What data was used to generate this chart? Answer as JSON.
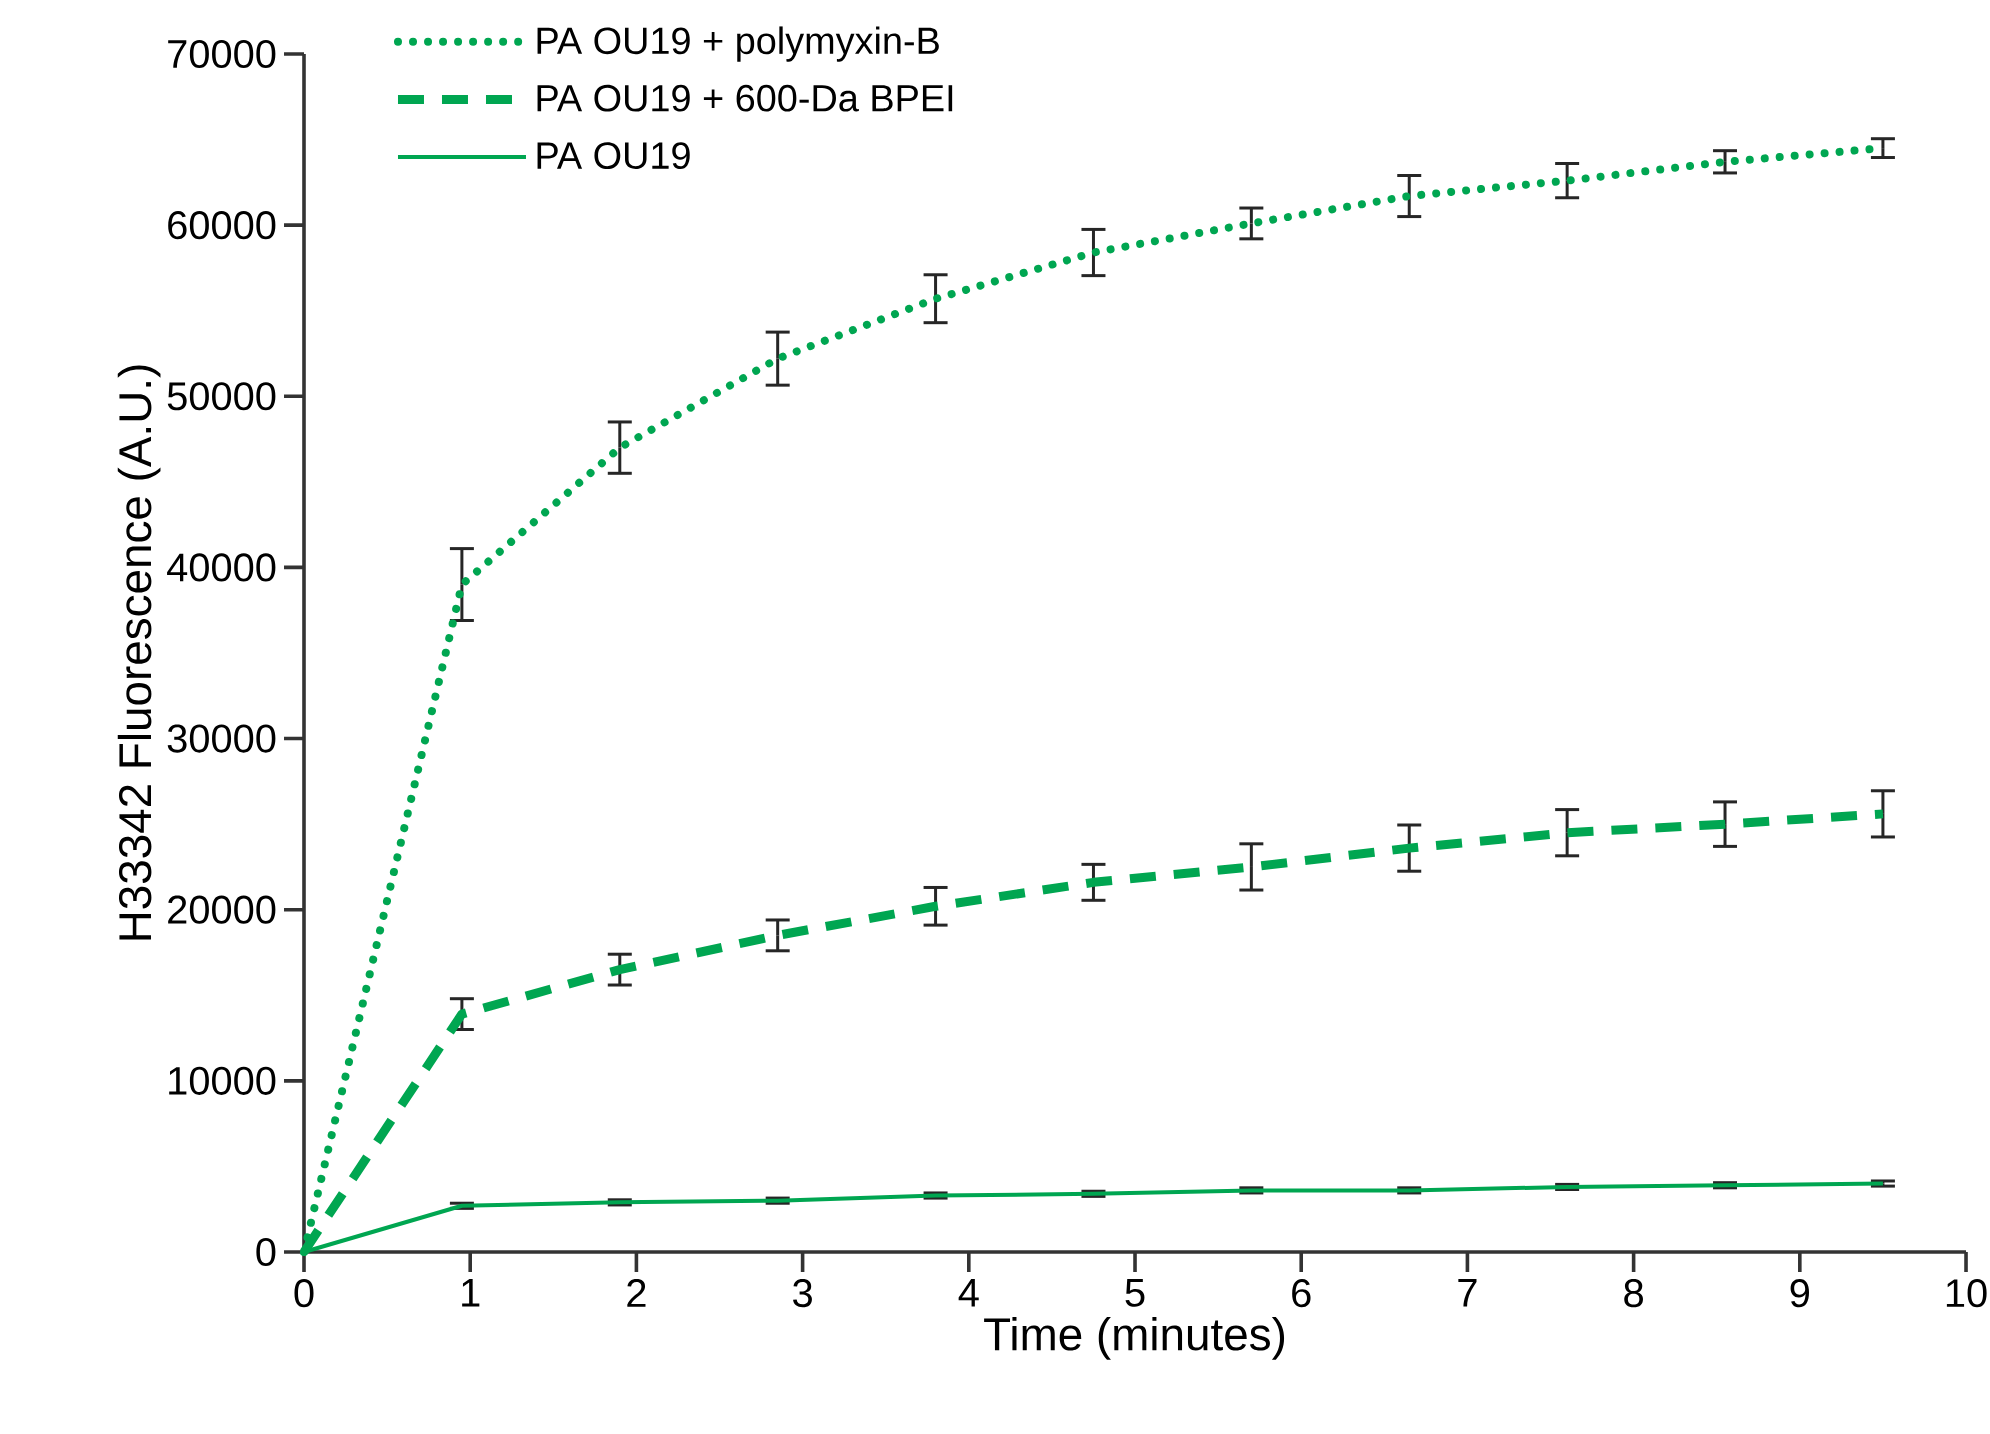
{
  "chart_data": {
    "type": "line",
    "xlabel": "Time (minutes)",
    "ylabel": "H33342 Fluorescence (A.U.)",
    "x": [
      0,
      0.95,
      1.9,
      2.85,
      3.8,
      4.75,
      5.7,
      6.65,
      7.6,
      8.55,
      9.5
    ],
    "series": [
      {
        "name": "PA OU19 + polymyxin-B",
        "color": "#00a651",
        "line_style": "dotted",
        "values": [
          0,
          39000,
          47000,
          52200,
          55700,
          58400,
          60100,
          61700,
          62600,
          63700,
          64500
        ],
        "errors": [
          null,
          2100,
          1500,
          1550,
          1400,
          1350,
          900,
          1200,
          1000,
          650,
          550
        ]
      },
      {
        "name": "PA OU19 + 600-Da BPEI",
        "color": "#00a651",
        "line_style": "dashed",
        "values": [
          0,
          13900,
          16500,
          18500,
          20200,
          21600,
          22500,
          23600,
          24500,
          25000,
          25600
        ],
        "errors": [
          null,
          900,
          900,
          900,
          1100,
          1050,
          1350,
          1350,
          1350,
          1300,
          1350
        ]
      },
      {
        "name": "PA OU19",
        "color": "#00a651",
        "line_style": "solid",
        "values": [
          0,
          2700,
          2900,
          3000,
          3300,
          3400,
          3600,
          3600,
          3800,
          3900,
          4000
        ],
        "errors": [
          null,
          150,
          150,
          150,
          150,
          150,
          150,
          150,
          150,
          150,
          150
        ]
      }
    ],
    "xlim": [
      0,
      10
    ],
    "xticks": [
      0,
      1,
      2,
      3,
      4,
      5,
      6,
      7,
      8,
      9,
      10
    ],
    "ylim": [
      0,
      70000
    ],
    "yticks": [
      0,
      10000,
      20000,
      30000,
      40000,
      50000,
      60000,
      70000
    ],
    "legend": "top left"
  }
}
